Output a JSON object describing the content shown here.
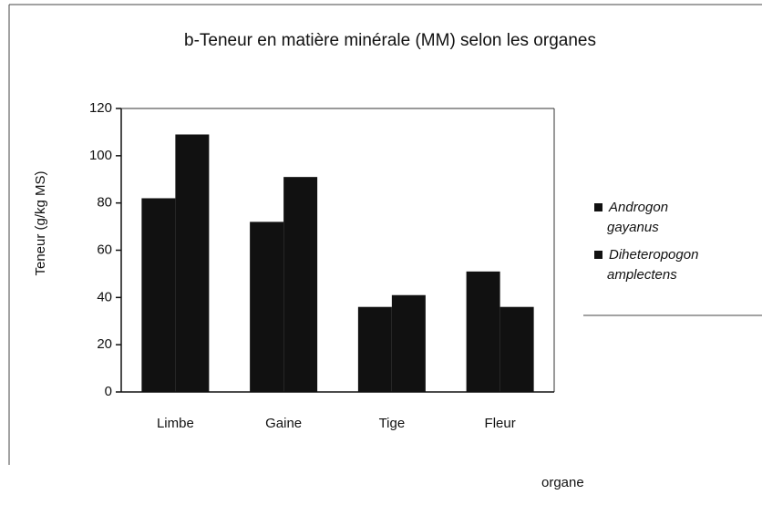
{
  "chart_data": {
    "type": "bar",
    "title": "b-Teneur en matière minérale   (MM) selon les organes",
    "ylabel": "Teneur (g/kg MS)",
    "xlabel": "organe",
    "categories": [
      "Limbe",
      "Gaine",
      "Tige",
      "Fleur"
    ],
    "series": [
      {
        "name": "Androgon gayanus",
        "color": "#111111",
        "values": [
          82,
          72,
          36,
          51
        ]
      },
      {
        "name": "Diheteropogon amplectens",
        "color": "#111111",
        "values": [
          109,
          91,
          41,
          36
        ]
      }
    ],
    "ylim": [
      0,
      120
    ],
    "yticks": [
      0,
      20,
      40,
      60,
      80,
      100,
      120
    ],
    "legend": "right"
  }
}
